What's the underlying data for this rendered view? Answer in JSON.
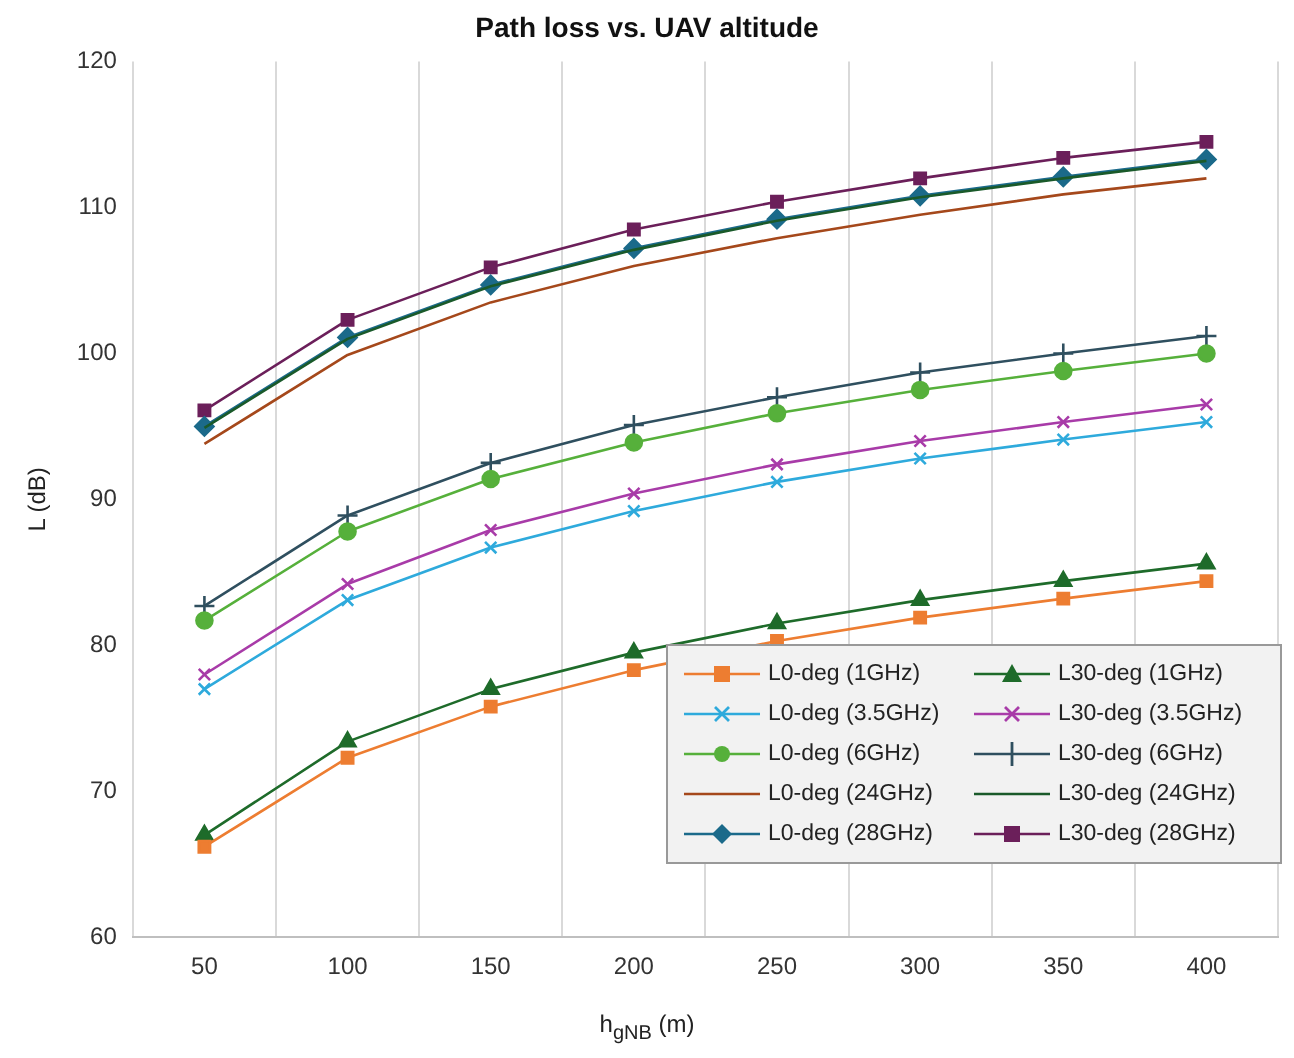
{
  "chart_data": {
    "type": "line",
    "title": "Path loss vs. UAV altitude",
    "xlabel": "h$_{gNB}$ (m)",
    "ylabel": "L (dB)",
    "categories": [
      "50",
      "100",
      "150",
      "200",
      "250",
      "300",
      "350",
      "400"
    ],
    "ylim": [
      60,
      120
    ],
    "yticks": [
      60,
      70,
      80,
      90,
      100,
      110,
      120
    ],
    "grid": "x",
    "legend": "bottom right",
    "series": [
      {
        "name": "L0-deg (1GHz)",
        "color": "#ed7d31",
        "marker": "square",
        "values": [
          66.2,
          72.3,
          75.8,
          78.3,
          80.3,
          81.9,
          83.2,
          84.4
        ]
      },
      {
        "name": "L30-deg (1GHz)",
        "color": "#1e6b2a",
        "marker": "triangle",
        "values": [
          67.0,
          73.4,
          77.0,
          79.5,
          81.5,
          83.1,
          84.4,
          85.6
        ]
      },
      {
        "name": "L0-deg (3.5GHz)",
        "color": "#2eaadc",
        "marker": "cross",
        "values": [
          77.0,
          83.1,
          86.7,
          89.2,
          91.2,
          92.8,
          94.1,
          95.3
        ]
      },
      {
        "name": "L30-deg (3.5GHz)",
        "color": "#a83ba8",
        "marker": "cross",
        "values": [
          78.0,
          84.2,
          87.9,
          90.4,
          92.4,
          94.0,
          95.3,
          96.5
        ]
      },
      {
        "name": "L0-deg (6GHz)",
        "color": "#56b03b",
        "marker": "circle",
        "values": [
          81.7,
          87.8,
          91.4,
          93.9,
          95.9,
          97.5,
          98.8,
          100.0
        ]
      },
      {
        "name": "L30-deg (6GHz)",
        "color": "#2f4f5f",
        "marker": "plus",
        "values": [
          82.7,
          88.9,
          92.5,
          95.1,
          97.0,
          98.7,
          100.0,
          101.2
        ]
      },
      {
        "name": "L0-deg (24GHz)",
        "color": "#a5481b",
        "marker": "none",
        "values": [
          93.8,
          99.9,
          103.5,
          106.0,
          107.9,
          109.5,
          110.9,
          112.0
        ]
      },
      {
        "name": "L30-deg (24GHz)",
        "color": "#1a5a2a",
        "marker": "none",
        "values": [
          94.9,
          101.0,
          104.6,
          107.1,
          109.1,
          110.7,
          112.0,
          113.2
        ]
      },
      {
        "name": "L0-deg (28GHz)",
        "color": "#1b6a8a",
        "marker": "diamond",
        "values": [
          95.0,
          101.1,
          104.7,
          107.2,
          109.2,
          110.8,
          112.1,
          113.3
        ]
      },
      {
        "name": "L30-deg (28GHz)",
        "color": "#6b1f5a",
        "marker": "square",
        "values": [
          96.1,
          102.3,
          105.9,
          108.5,
          110.4,
          112.0,
          113.4,
          114.5
        ]
      }
    ]
  }
}
